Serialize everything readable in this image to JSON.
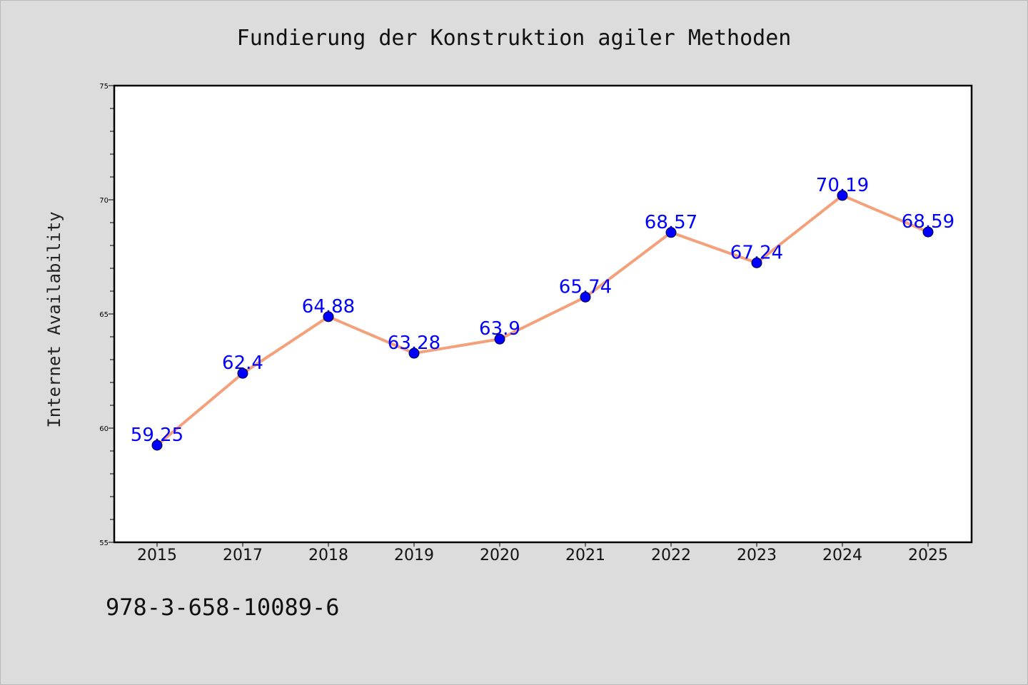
{
  "chart_data": {
    "type": "line",
    "title": "Fundierung der Konstruktion agiler Methoden",
    "xlabel": "",
    "ylabel": "Internet Availability",
    "categories": [
      "2015",
      "2017",
      "2018",
      "2019",
      "2020",
      "2021",
      "2022",
      "2023",
      "2024",
      "2025"
    ],
    "series": [
      {
        "values": [
          59.25,
          62.4,
          64.88,
          63.28,
          63.9,
          65.74,
          68.57,
          67.24,
          70.19,
          68.59
        ],
        "data_labels": [
          "59.25",
          "62.4",
          "64.88",
          "63.28",
          "63.9",
          "65.74",
          "68.57",
          "67.24",
          "70.19",
          "68.59"
        ],
        "line_color": "#f4a07a",
        "marker_color": "#0000ff"
      }
    ],
    "ylim": [
      55,
      75
    ],
    "yticks": [
      "55",
      "60",
      "65",
      "70",
      "75"
    ],
    "grid": false,
    "legend": "none",
    "background": "#dcdcdc",
    "plot_background": "#ffffff",
    "label_color": "#0000ff"
  },
  "footer": {
    "isbn": "978-3-658-10089-6"
  }
}
